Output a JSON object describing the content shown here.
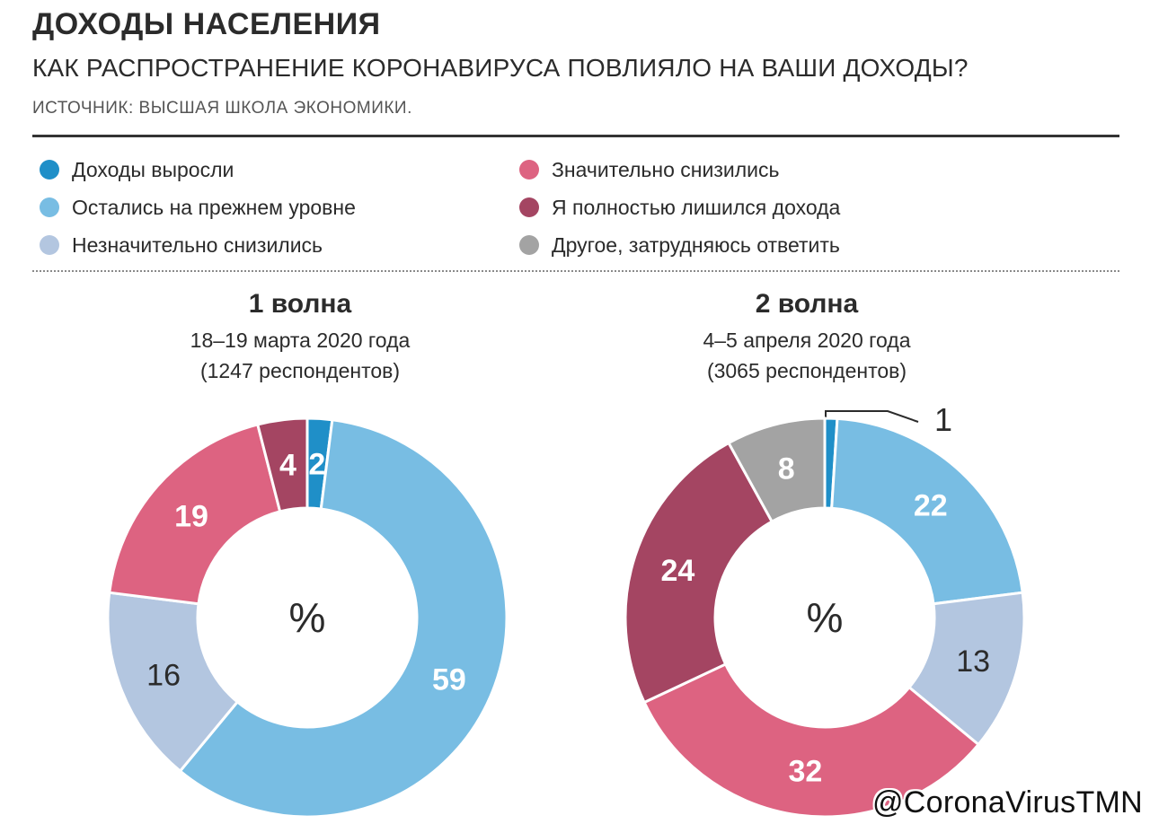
{
  "header": {
    "title": "ДОХОДЫ НАСЕЛЕНИЯ",
    "subtitle": "КАК РАСПРОСТРАНЕНИЕ КОРОНАВИРУСА ПОВЛИЯЛО НА ВАШИ ДОХОДЫ?",
    "source": "ИСТОЧНИК: ВЫСШАЯ ШКОЛА ЭКОНОМИКИ."
  },
  "legend": [
    {
      "label": "Доходы выросли",
      "color": "#1f8fc8"
    },
    {
      "label": "Остались на прежнем уровне",
      "color": "#78bde3"
    },
    {
      "label": "Незначительно снизились",
      "color": "#b3c6e0"
    },
    {
      "label": "Значительно снизились",
      "color": "#dd6381"
    },
    {
      "label": "Я полностью лишился дохода",
      "color": "#a44562"
    },
    {
      "label": "Другое, затрудняюсь ответить",
      "color": "#a3a3a3"
    }
  ],
  "chart_data": [
    {
      "type": "pie",
      "donut": true,
      "title": "1 волна",
      "subtitle": "18–19 марта 2020 года",
      "note": "(1247 респондентов)",
      "center_label": "%",
      "categories": [
        "Доходы выросли",
        "Остались на прежнем уровне",
        "Незначительно снизились",
        "Значительно снизились",
        "Я полностью лишился дохода"
      ],
      "values": [
        2,
        59,
        16,
        19,
        4
      ],
      "labels": [
        "2",
        "59",
        "16",
        "19",
        "4"
      ]
    },
    {
      "type": "pie",
      "donut": true,
      "title": "2 волна",
      "subtitle": "4–5 апреля 2020 года",
      "note": "(3065 респондентов)",
      "center_label": "%",
      "categories": [
        "Доходы выросли",
        "Остались на прежнем уровне",
        "Незначительно снизились",
        "Значительно снизились",
        "Я полностью лишился дохода",
        "Другое, затрудняюсь ответить"
      ],
      "values": [
        1,
        22,
        13,
        32,
        24,
        8
      ],
      "labels": [
        "1",
        "22",
        "13",
        "32",
        "24",
        "8"
      ]
    }
  ],
  "watermark": "@CoronaVirusTMN"
}
